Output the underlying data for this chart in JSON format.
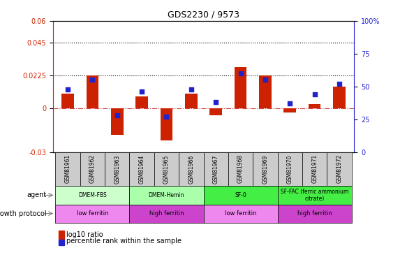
{
  "title": "GDS2230 / 9573",
  "samples": [
    "GSM81961",
    "GSM81962",
    "GSM81963",
    "GSM81964",
    "GSM81965",
    "GSM81966",
    "GSM81967",
    "GSM81968",
    "GSM81969",
    "GSM81970",
    "GSM81971",
    "GSM81972"
  ],
  "log10_ratio": [
    0.01,
    0.0225,
    -0.018,
    0.008,
    -0.022,
    0.01,
    -0.005,
    0.0285,
    0.0225,
    -0.003,
    0.003,
    0.015
  ],
  "percentile_rank": [
    48,
    55,
    28,
    46,
    27,
    48,
    38,
    60,
    55,
    37,
    44,
    52
  ],
  "ylim_left": [
    -0.03,
    0.06
  ],
  "ylim_right": [
    0,
    100
  ],
  "hlines": [
    0.045,
    0.0225
  ],
  "bar_color": "#cc2200",
  "dot_color": "#2222cc",
  "zero_line_color": "#cc4444",
  "agent_groups": [
    {
      "label": "DMEM-FBS",
      "start": 0,
      "end": 3,
      "color": "#ccffcc"
    },
    {
      "label": "DMEM-Hemin",
      "start": 3,
      "end": 6,
      "color": "#aaffaa"
    },
    {
      "label": "SF-0",
      "start": 6,
      "end": 9,
      "color": "#44ee44"
    },
    {
      "label": "SF-FAC (ferric ammonium\ncitrate)",
      "start": 9,
      "end": 12,
      "color": "#44ee44"
    }
  ],
  "growth_groups": [
    {
      "label": "low ferritin",
      "start": 0,
      "end": 3,
      "color": "#ee88ee"
    },
    {
      "label": "high ferritin",
      "start": 3,
      "end": 6,
      "color": "#cc44cc"
    },
    {
      "label": "low ferritin",
      "start": 6,
      "end": 9,
      "color": "#ee88ee"
    },
    {
      "label": "high ferritin",
      "start": 9,
      "end": 12,
      "color": "#cc44cc"
    }
  ],
  "legend_items": [
    {
      "label": "log10 ratio",
      "color": "#cc2200"
    },
    {
      "label": "percentile rank within the sample",
      "color": "#2222cc"
    }
  ],
  "tick_header_bg": "#cccccc",
  "left_axis_color": "#cc2200",
  "right_axis_color": "#2222cc",
  "left_yticks": [
    -0.03,
    0,
    0.0225,
    0.045,
    0.06
  ],
  "left_yticklabels": [
    "-0.03",
    "0",
    "0.0225",
    "0.045",
    "0.06"
  ],
  "right_yticks": [
    0,
    25,
    50,
    75,
    100
  ],
  "right_yticklabels": [
    "0",
    "25",
    "50",
    "75",
    "100%"
  ]
}
